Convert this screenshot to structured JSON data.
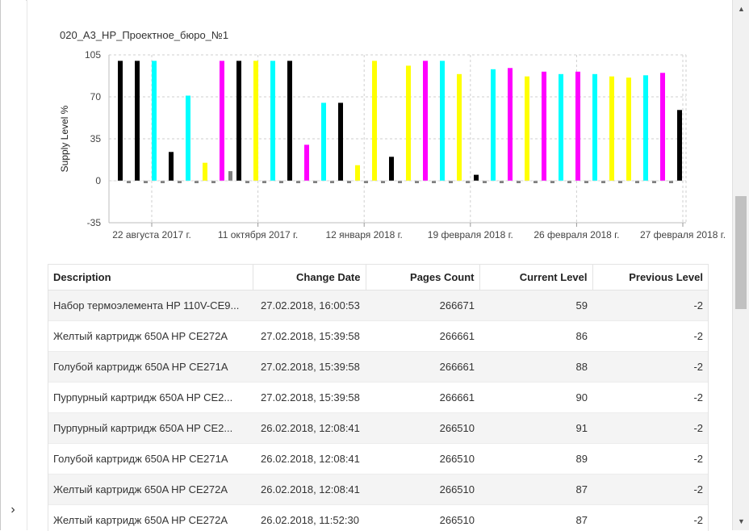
{
  "ui": {
    "expand_glyph": "›",
    "scroll_up_glyph": "▲",
    "scroll_down_glyph": "▼",
    "icons": {
      "expand": "chevron-right-icon",
      "scroll_up": "arrow-up-icon",
      "scroll_down": "arrow-down-icon"
    }
  },
  "chart_data": {
    "type": "bar",
    "title": "020_A3_HP_Проектное_бюро_№1",
    "ylabel": "Supply Level %",
    "ylim": [
      -35,
      105
    ],
    "yticks": [
      105,
      70,
      35,
      0,
      -35
    ],
    "grid": true,
    "x_tick_labels": [
      "22 августа 2017 г.",
      "11 октября 2017 г.",
      "12 января 2018 г.",
      "19 февраля 2018 г.",
      "26 февраля 2018 г.",
      "27 февраля 2018 г."
    ],
    "colors": {
      "black": "#000000",
      "cyan": "#00ffff",
      "magenta": "#ff00ff",
      "yellow": "#ffff00",
      "gray": "#808080",
      "lightgray": "#909090"
    },
    "bars": [
      {
        "c": "black",
        "v": 100
      },
      {
        "c": "gray",
        "v": -2
      },
      {
        "c": "black",
        "v": 100
      },
      {
        "c": "gray",
        "v": -2
      },
      {
        "c": "cyan",
        "v": 100
      },
      {
        "c": "gray",
        "v": -2
      },
      {
        "c": "black",
        "v": 24
      },
      {
        "c": "gray",
        "v": -2
      },
      {
        "c": "cyan",
        "v": 71
      },
      {
        "c": "gray",
        "v": -2
      },
      {
        "c": "yellow",
        "v": 15
      },
      {
        "c": "gray",
        "v": -2
      },
      {
        "c": "magenta",
        "v": 100
      },
      {
        "c": "gray",
        "v": 8
      },
      {
        "c": "black",
        "v": 100
      },
      {
        "c": "gray",
        "v": -2
      },
      {
        "c": "yellow",
        "v": 100
      },
      {
        "c": "gray",
        "v": -2
      },
      {
        "c": "cyan",
        "v": 100
      },
      {
        "c": "gray",
        "v": -2
      },
      {
        "c": "black",
        "v": 100
      },
      {
        "c": "gray",
        "v": -2
      },
      {
        "c": "magenta",
        "v": 30
      },
      {
        "c": "gray",
        "v": -2
      },
      {
        "c": "cyan",
        "v": 65
      },
      {
        "c": "gray",
        "v": -2
      },
      {
        "c": "black",
        "v": 65
      },
      {
        "c": "gray",
        "v": -2
      },
      {
        "c": "yellow",
        "v": 13
      },
      {
        "c": "gray",
        "v": -2
      },
      {
        "c": "yellow",
        "v": 100
      },
      {
        "c": "gray",
        "v": -2
      },
      {
        "c": "black",
        "v": 20
      },
      {
        "c": "gray",
        "v": -2
      },
      {
        "c": "yellow",
        "v": 96
      },
      {
        "c": "gray",
        "v": -2
      },
      {
        "c": "magenta",
        "v": 100
      },
      {
        "c": "gray",
        "v": -2
      },
      {
        "c": "cyan",
        "v": 100
      },
      {
        "c": "gray",
        "v": -2
      },
      {
        "c": "yellow",
        "v": 89
      },
      {
        "c": "gray",
        "v": -2
      },
      {
        "c": "black",
        "v": 5
      },
      {
        "c": "gray",
        "v": -2
      },
      {
        "c": "cyan",
        "v": 93
      },
      {
        "c": "gray",
        "v": -2
      },
      {
        "c": "magenta",
        "v": 94
      },
      {
        "c": "gray",
        "v": -2
      },
      {
        "c": "yellow",
        "v": 87
      },
      {
        "c": "gray",
        "v": -2
      },
      {
        "c": "magenta",
        "v": 91
      },
      {
        "c": "gray",
        "v": -2
      },
      {
        "c": "cyan",
        "v": 89
      },
      {
        "c": "gray",
        "v": -2
      },
      {
        "c": "magenta",
        "v": 91
      },
      {
        "c": "gray",
        "v": -2
      },
      {
        "c": "cyan",
        "v": 89
      },
      {
        "c": "gray",
        "v": -2
      },
      {
        "c": "yellow",
        "v": 87
      },
      {
        "c": "gray",
        "v": -2
      },
      {
        "c": "yellow",
        "v": 86
      },
      {
        "c": "gray",
        "v": -2
      },
      {
        "c": "cyan",
        "v": 88
      },
      {
        "c": "gray",
        "v": -2
      },
      {
        "c": "magenta",
        "v": 90
      },
      {
        "c": "gray",
        "v": -2
      },
      {
        "c": "black",
        "v": 59
      }
    ]
  },
  "table": {
    "columns": [
      "Description",
      "Change Date",
      "Pages Count",
      "Current Level",
      "Previous Level"
    ],
    "rows": [
      [
        "Набор термоэлемента HP 110V-CE9...",
        "27.02.2018, 16:00:53",
        "266671",
        "59",
        "-2"
      ],
      [
        "Желтый картридж 650A HP CE272A",
        "27.02.2018, 15:39:58",
        "266661",
        "86",
        "-2"
      ],
      [
        "Голубой картридж 650A HP CE271A",
        "27.02.2018, 15:39:58",
        "266661",
        "88",
        "-2"
      ],
      [
        "Пурпурный картридж 650A HP CE2...",
        "27.02.2018, 15:39:58",
        "266661",
        "90",
        "-2"
      ],
      [
        "Пурпурный картридж 650A HP CE2...",
        "26.02.2018, 12:08:41",
        "266510",
        "91",
        "-2"
      ],
      [
        "Голубой картридж 650A HP CE271A",
        "26.02.2018, 12:08:41",
        "266510",
        "89",
        "-2"
      ],
      [
        "Желтый картридж 650A HP CE272A",
        "26.02.2018, 12:08:41",
        "266510",
        "87",
        "-2"
      ],
      [
        "Желтый картридж 650A HP CE272A",
        "26.02.2018, 11:52:30",
        "266510",
        "87",
        "-2"
      ]
    ]
  }
}
